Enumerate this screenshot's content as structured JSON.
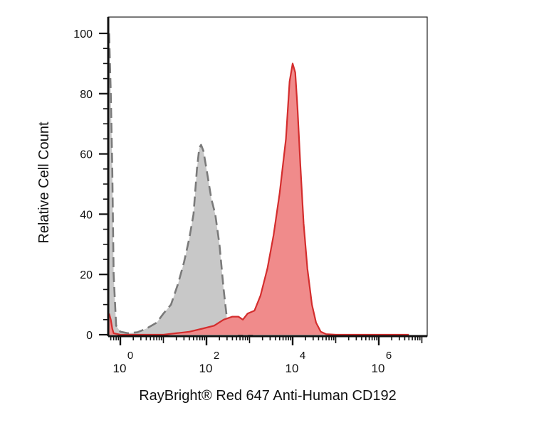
{
  "chart_data": {
    "type": "area",
    "xlabel": "RayBright® Red 647 Anti-Human CD192",
    "ylabel": "Relative Cell Count",
    "x_scale": "log",
    "xlim": [
      0.5,
      10000000
    ],
    "ylim": [
      0,
      100
    ],
    "y_ticks": [
      0,
      20,
      40,
      60,
      80,
      100
    ],
    "y_tick_labels": [
      "0",
      "20",
      "40",
      "60",
      "80",
      "100"
    ],
    "x_ticks": [
      {
        "base": "10",
        "exp": "0",
        "value": 1
      },
      {
        "base": "10",
        "exp": "2",
        "value": 100
      },
      {
        "base": "10",
        "exp": "4",
        "value": 10000
      },
      {
        "base": "10",
        "exp": "6",
        "value": 1000000
      }
    ],
    "grid": false,
    "legend": "none",
    "series": [
      {
        "style": "dashed",
        "fill": "#c8c8c8",
        "stroke": "#7a7a7a",
        "x": [
          0.55,
          0.6,
          0.65,
          0.7,
          0.8,
          1,
          1.5,
          2.5,
          4,
          7,
          10,
          15,
          22,
          30,
          40,
          50,
          60,
          68,
          75,
          85,
          100,
          130,
          160,
          200,
          250,
          300,
          400,
          550,
          700,
          900,
          1200
        ],
        "y": [
          100,
          80,
          55,
          20,
          3,
          1,
          0.5,
          0.8,
          2,
          4,
          7,
          10,
          17,
          24,
          32,
          40,
          55,
          62,
          63,
          61,
          55,
          45,
          40,
          30,
          15,
          5,
          1,
          0.2,
          0,
          0,
          0
        ]
      },
      {
        "style": "solid",
        "fill": "#f08b8b",
        "stroke": "#d42d2d",
        "x": [
          0.55,
          0.6,
          0.65,
          0.7,
          1,
          2,
          5,
          10,
          20,
          40,
          80,
          150,
          250,
          400,
          550,
          700,
          900,
          1300,
          1800,
          2600,
          3600,
          5000,
          7000,
          8500,
          10000,
          11500,
          13000,
          15000,
          18000,
          22000,
          28000,
          35000,
          45000,
          60000,
          100000,
          1000000,
          5000000
        ],
        "y": [
          7,
          5,
          2,
          0.5,
          0,
          0,
          0,
          0,
          0.5,
          1,
          2,
          3,
          5,
          6,
          6,
          5,
          7,
          8,
          13,
          22,
          33,
          47,
          65,
          84,
          90,
          87,
          75,
          57,
          37,
          22,
          10,
          4,
          1,
          0.2,
          0,
          0,
          0
        ]
      }
    ]
  }
}
